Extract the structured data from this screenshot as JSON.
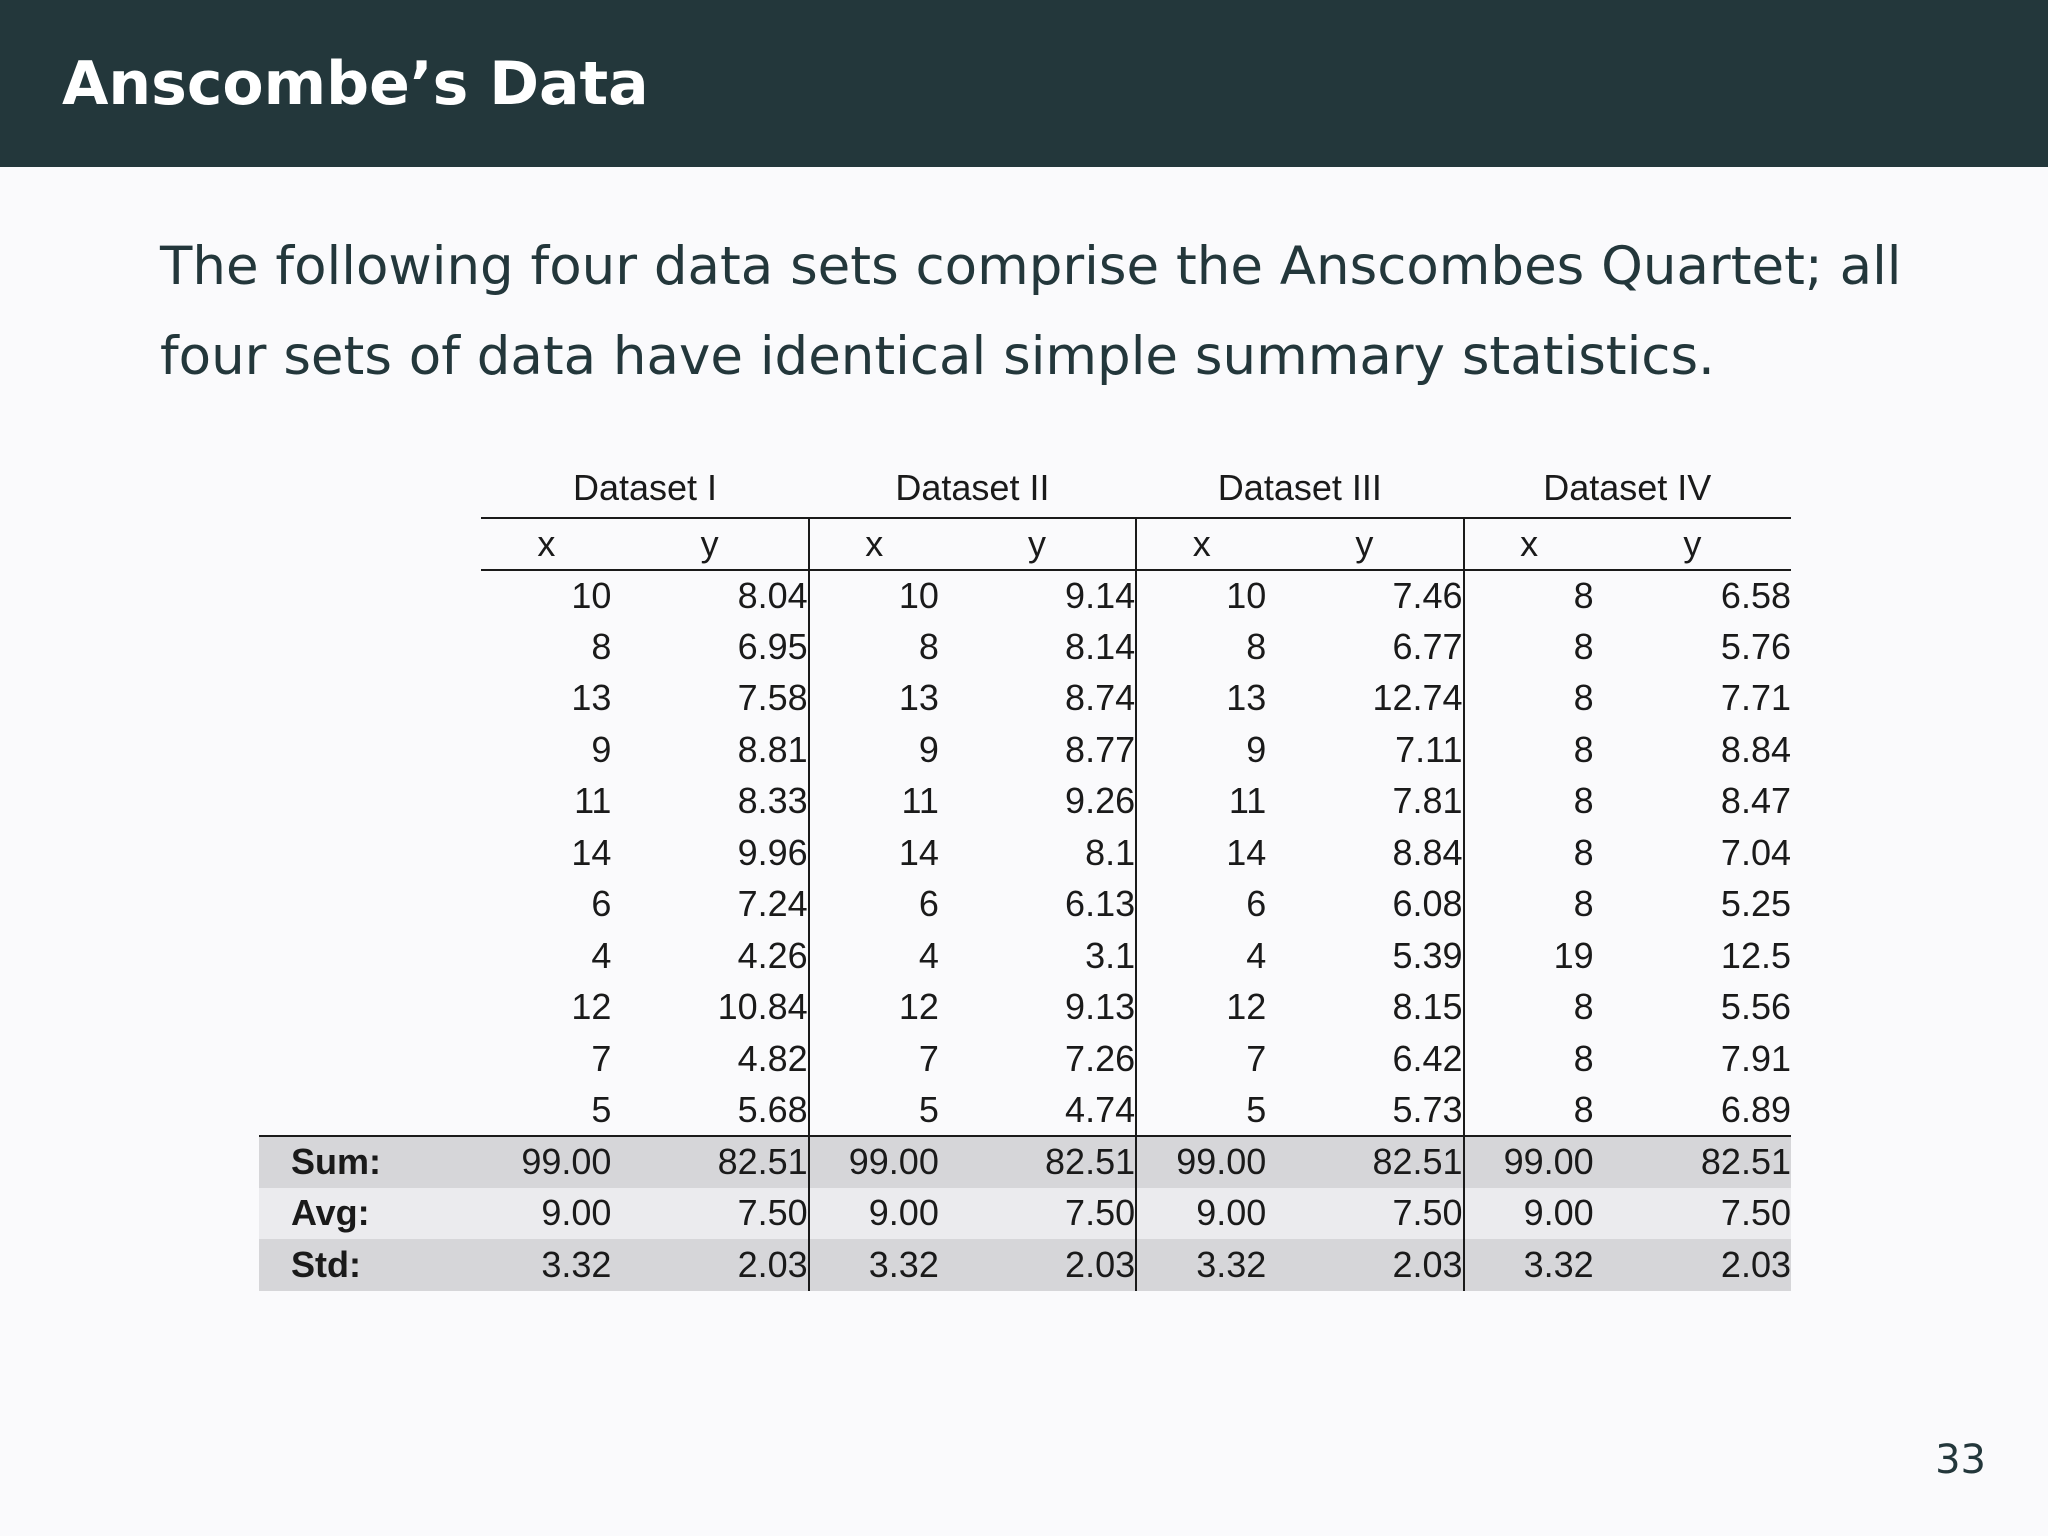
{
  "slide": {
    "title": "Anscombe’s Data",
    "intro": "The following four data sets comprise the Anscombes Quartet; all four sets of data have identical simple summary statistics.",
    "page_number": "33",
    "colors": {
      "header_bg": "#23373b",
      "header_text": "#ffffff",
      "body_bg": "#fafafc",
      "stat_row_dark": "#d6d6d9",
      "stat_row_light": "#ebebee"
    }
  },
  "table": {
    "datasets": [
      "Dataset I",
      "Dataset II",
      "Dataset III",
      "Dataset IV"
    ],
    "column_x": "x",
    "column_y": "y",
    "rows": [
      [
        "10",
        "8.04",
        "10",
        "9.14",
        "10",
        "7.46",
        "8",
        "6.58"
      ],
      [
        "8",
        "6.95",
        "8",
        "8.14",
        "8",
        "6.77",
        "8",
        "5.76"
      ],
      [
        "13",
        "7.58",
        "13",
        "8.74",
        "13",
        "12.74",
        "8",
        "7.71"
      ],
      [
        "9",
        "8.81",
        "9",
        "8.77",
        "9",
        "7.11",
        "8",
        "8.84"
      ],
      [
        "11",
        "8.33",
        "11",
        "9.26",
        "11",
        "7.81",
        "8",
        "8.47"
      ],
      [
        "14",
        "9.96",
        "14",
        "8.1",
        "14",
        "8.84",
        "8",
        "7.04"
      ],
      [
        "6",
        "7.24",
        "6",
        "6.13",
        "6",
        "6.08",
        "8",
        "5.25"
      ],
      [
        "4",
        "4.26",
        "4",
        "3.1",
        "4",
        "5.39",
        "19",
        "12.5"
      ],
      [
        "12",
        "10.84",
        "12",
        "9.13",
        "12",
        "8.15",
        "8",
        "5.56"
      ],
      [
        "7",
        "4.82",
        "7",
        "7.26",
        "7",
        "6.42",
        "8",
        "7.91"
      ],
      [
        "5",
        "5.68",
        "5",
        "4.74",
        "5",
        "5.73",
        "8",
        "6.89"
      ]
    ],
    "stats": [
      {
        "label": "Sum:",
        "values": [
          "99.00",
          "82.51",
          "99.00",
          "82.51",
          "99.00",
          "82.51",
          "99.00",
          "82.51"
        ]
      },
      {
        "label": "Avg:",
        "values": [
          "9.00",
          "7.50",
          "9.00",
          "7.50",
          "9.00",
          "7.50",
          "9.00",
          "7.50"
        ]
      },
      {
        "label": "Std:",
        "values": [
          "3.32",
          "2.03",
          "3.32",
          "2.03",
          "3.32",
          "2.03",
          "3.32",
          "2.03"
        ]
      }
    ]
  }
}
